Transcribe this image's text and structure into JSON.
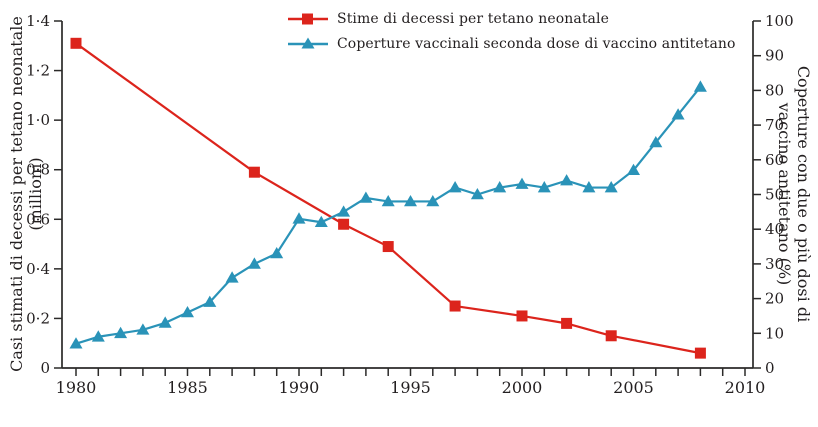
{
  "figure": {
    "background": "#ffffff",
    "axis_color": "#2b2a29",
    "text_color": "#231f20"
  },
  "left_axis": {
    "title_line1": "Casi stimati di decessi per tetano neonatale",
    "title_line2": "(millioni)"
  },
  "right_axis": {
    "title_line1": "Coperture con due o più dosi di",
    "title_line2": "vaccino antitetano (%)"
  },
  "legend": {
    "deaths_label": "Stime di decessi per tetano neonatale",
    "coverage_label": "Coperture vaccinali seconda dose di vaccino antitetano"
  },
  "chart_data": {
    "type": "line",
    "title": "",
    "grid": false,
    "legend_position": "top-center",
    "x_axis": {
      "range": [
        1980,
        2010
      ],
      "major_ticks": [
        1980,
        1985,
        1990,
        1995,
        2000,
        2005,
        2010
      ],
      "major_tick_labels": [
        "1980",
        "1985",
        "1990",
        "1995",
        "2000",
        "2005",
        "2010"
      ],
      "minor_tick_interval": 1
    },
    "left_y_axis": {
      "label": "Casi stimati di decessi per tetano neonatale (millioni)",
      "range": [
        0,
        1.4
      ],
      "ticks": [
        0,
        0.2,
        0.4,
        0.6,
        0.8,
        1.0,
        1.2,
        1.4
      ],
      "tick_labels": [
        "0",
        "0·2",
        "0·4",
        "0·6",
        "0·8",
        "1·0",
        "1·2",
        "1·4"
      ]
    },
    "right_y_axis": {
      "label": "Coperture con due o più dosi di vaccino antitetano (%)",
      "range": [
        0,
        100
      ],
      "ticks": [
        0,
        10,
        20,
        30,
        40,
        50,
        60,
        70,
        80,
        90,
        100
      ],
      "tick_labels": [
        "0",
        "10",
        "20",
        "30",
        "40",
        "50",
        "60",
        "70",
        "80",
        "90",
        "100"
      ]
    },
    "series": [
      {
        "name": "Stime di decessi per tetano neonatale",
        "axis": "left",
        "marker": "square",
        "color": "#dc241c",
        "x": [
          1980,
          1988,
          1992,
          1994,
          1997,
          2000,
          2002,
          2004,
          2008
        ],
        "y": [
          1.31,
          0.79,
          0.58,
          0.49,
          0.25,
          0.21,
          0.18,
          0.13,
          0.06
        ]
      },
      {
        "name": "Coperture vaccinali seconda dose di vaccino antitetano",
        "axis": "right",
        "marker": "triangle",
        "color": "#2a93b8",
        "x": [
          1980,
          1981,
          1982,
          1983,
          1984,
          1985,
          1986,
          1987,
          1988,
          1989,
          1990,
          1991,
          1992,
          1993,
          1994,
          1995,
          1996,
          1997,
          1998,
          1999,
          2000,
          2001,
          2002,
          2003,
          2004,
          2005,
          2006,
          2007,
          2008
        ],
        "y": [
          7,
          9,
          10,
          11,
          13,
          16,
          19,
          26,
          30,
          33,
          43,
          42,
          45,
          49,
          48,
          48,
          48,
          52,
          50,
          52,
          53,
          52,
          54,
          52,
          52,
          57,
          65,
          73,
          81
        ]
      }
    ]
  }
}
